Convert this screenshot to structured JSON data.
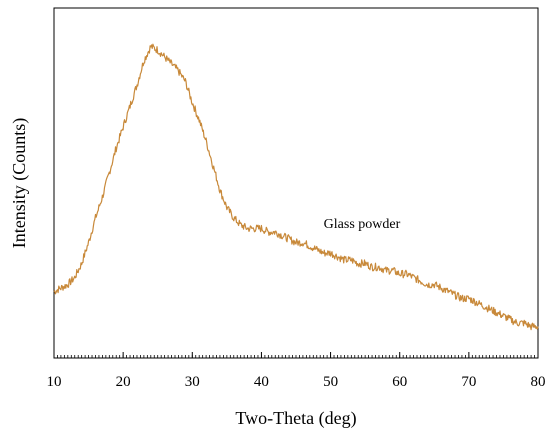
{
  "chart_data": {
    "type": "line",
    "title": "",
    "xlabel": "Two-Theta (deg)",
    "ylabel": "Intensity (Counts)",
    "xlim": [
      10,
      80
    ],
    "ylim": [
      0,
      100
    ],
    "x_ticks": [
      10,
      20,
      30,
      40,
      50,
      60,
      70,
      80
    ],
    "x_tick_labels": [
      "10",
      "20",
      "30",
      "40",
      "50",
      "60",
      "70",
      "80"
    ],
    "y_ticks_labeled": false,
    "grid": false,
    "series_color": "#c8893a",
    "annotations": [
      {
        "text": "Glass powder",
        "x": 49,
        "y": 36
      }
    ],
    "series": [
      {
        "x": [
          10,
          11,
          12,
          13,
          14,
          15,
          16,
          17,
          18,
          19,
          20,
          21,
          22,
          23,
          24,
          25,
          26,
          27,
          28,
          29,
          30,
          31,
          32,
          33,
          34,
          35,
          36,
          37,
          38,
          39,
          40,
          41,
          42,
          43,
          44,
          45,
          46,
          47,
          48,
          49,
          50,
          51,
          52,
          53,
          54,
          55,
          56,
          57,
          58,
          59,
          60,
          61,
          62,
          63,
          64,
          65,
          66,
          67,
          68,
          69,
          70,
          71,
          72,
          73,
          74,
          75,
          76,
          77,
          78,
          79,
          80
        ],
        "y": [
          19,
          20,
          21,
          23,
          27,
          33,
          40,
          46,
          53,
          60,
          66,
          72,
          78,
          85,
          89,
          88,
          86,
          84,
          82,
          79,
          73,
          68,
          62,
          55,
          48,
          43,
          40,
          38,
          37,
          37,
          37,
          36,
          36,
          35,
          34,
          33,
          33,
          32,
          31,
          30,
          30,
          29,
          28,
          28,
          27,
          27,
          26,
          26,
          25,
          25,
          24,
          24,
          23,
          22,
          21,
          21,
          20,
          19,
          18,
          17,
          17,
          16,
          15,
          14,
          13,
          12,
          11,
          10,
          10,
          9,
          9
        ]
      }
    ]
  }
}
